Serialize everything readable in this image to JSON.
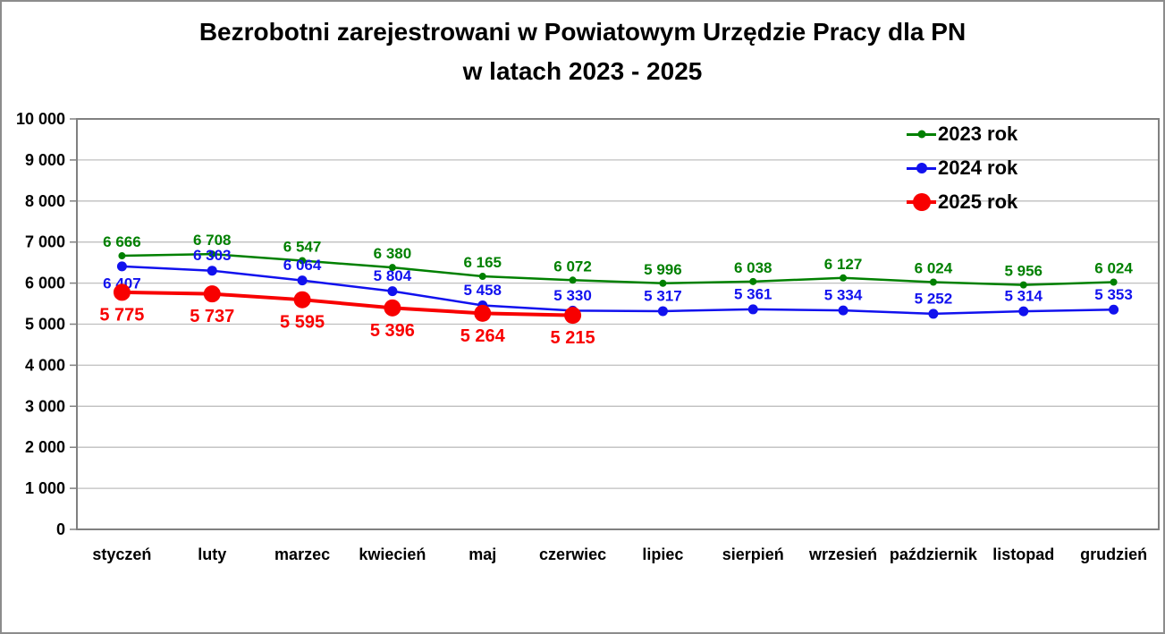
{
  "figure": {
    "title_line1": "Bezrobotni zarejestrowani w Powiatowym Urzędzie Pracy dla PN",
    "title_line2": "w latach 2023 - 2025"
  },
  "chart_data": {
    "type": "line",
    "title": "Bezrobotni zarejestrowani w Powiatowym Urzędzie Pracy dla PN w latach 2023 - 2025",
    "categories": [
      "styczeń",
      "luty",
      "marzec",
      "kwiecień",
      "maj",
      "czerwiec",
      "lipiec",
      "sierpień",
      "wrzesień",
      "październik",
      "listopad",
      "grudzień"
    ],
    "series": [
      {
        "name": "2023 rok",
        "color": "#008000",
        "values": [
          6666,
          6708,
          6547,
          6380,
          6165,
          6072,
          5996,
          6038,
          6127,
          6024,
          5956,
          6024
        ],
        "line_width": 2.5,
        "marker_radius": 4,
        "label_position": "above",
        "label_overrides": {},
        "label_font_size": 17
      },
      {
        "name": "2024 rok",
        "color": "#1111ee",
        "values": [
          6407,
          6303,
          6064,
          5804,
          5458,
          5330,
          5317,
          5361,
          5334,
          5252,
          5314,
          5353
        ],
        "line_width": 2.5,
        "marker_radius": 5.5,
        "label_position": "above",
        "label_overrides": {
          "0": "below"
        },
        "label_font_size": 17
      },
      {
        "name": "2025 rok",
        "color": "#f80000",
        "values": [
          5775,
          5737,
          5595,
          5396,
          5264,
          5215
        ],
        "line_width": 4,
        "marker_radius": 9.5,
        "label_position": "below",
        "label_overrides": {},
        "label_font_size": 20
      }
    ],
    "xlabel": "",
    "ylabel": "",
    "ylim": [
      0,
      10000
    ],
    "ytick_step": 1000,
    "grid": "horizontal",
    "grid_color": "#bfbfbf",
    "axis_color": "#808080",
    "tick_label_color": "#000000",
    "legend_position": "top-right",
    "legend_entries": [
      "2023 rok",
      "2024 rok",
      "2025 rok"
    ]
  }
}
